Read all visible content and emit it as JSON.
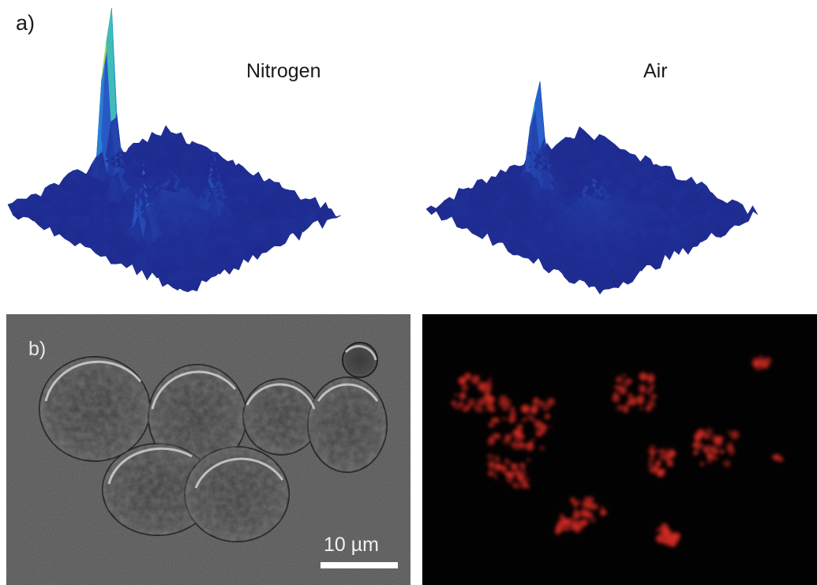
{
  "figure": {
    "panel_a": {
      "label": "a)",
      "surfaces": [
        {
          "title": "Nitrogen"
        },
        {
          "title": "Air"
        }
      ]
    },
    "panel_b": {
      "label": "b)",
      "scale_bar_label": "10 µm"
    }
  },
  "colors": {
    "surface_base": "#1f2f8f",
    "surface_peak": "#c0141a",
    "fluorescence": "#d02a22",
    "brightfield_bg": "#4a4a4a"
  }
}
